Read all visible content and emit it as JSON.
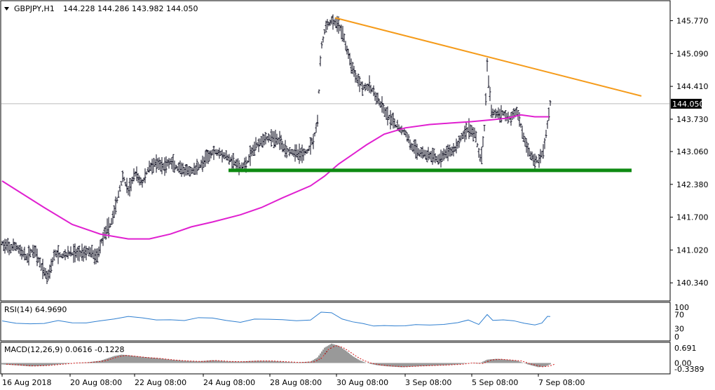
{
  "header": {
    "symbol": "GBPJPY,H1",
    "ohlc": "144.228 144.286 143.982 144.050"
  },
  "chart_data": {
    "type": "candlestick",
    "symbol": "GBPJPY",
    "timeframe": "H1",
    "price_axis": {
      "ticks": [
        "145.770",
        "145.090",
        "144.410",
        "143.730",
        "143.060",
        "142.380",
        "141.700",
        "141.020",
        "140.340"
      ],
      "current_price": "144.050",
      "ylim": [
        139.98,
        146.17
      ]
    },
    "time_axis": {
      "ticks": [
        "16 Aug 2018",
        "20 Aug 08:00",
        "22 Aug 08:00",
        "24 Aug 08:00",
        "28 Aug 08:00",
        "30 Aug 08:00",
        "3 Sep 08:00",
        "5 Sep 08:00",
        "7 Sep 08:00"
      ]
    },
    "price_path": [
      [
        0,
        141.15
      ],
      [
        10,
        141.05
      ],
      [
        20,
        141.1
      ],
      [
        35,
        140.85
      ],
      [
        45,
        141.05
      ],
      [
        55,
        140.7
      ],
      [
        65,
        140.45
      ],
      [
        75,
        140.95
      ],
      [
        85,
        140.9
      ],
      [
        95,
        140.95
      ],
      [
        110,
        140.95
      ],
      [
        125,
        141.0
      ],
      [
        135,
        140.85
      ],
      [
        145,
        141.35
      ],
      [
        155,
        141.55
      ],
      [
        165,
        142.1
      ],
      [
        172,
        142.55
      ],
      [
        180,
        142.25
      ],
      [
        190,
        142.6
      ],
      [
        200,
        142.4
      ],
      [
        210,
        142.75
      ],
      [
        220,
        142.8
      ],
      [
        230,
        142.75
      ],
      [
        240,
        142.85
      ],
      [
        250,
        142.7
      ],
      [
        260,
        142.65
      ],
      [
        270,
        142.65
      ],
      [
        285,
        142.8
      ],
      [
        300,
        143.05
      ],
      [
        310,
        143.05
      ],
      [
        320,
        142.95
      ],
      [
        330,
        142.85
      ],
      [
        340,
        142.7
      ],
      [
        350,
        142.85
      ],
      [
        360,
        143.15
      ],
      [
        370,
        143.3
      ],
      [
        380,
        143.35
      ],
      [
        395,
        143.3
      ],
      [
        405,
        143.1
      ],
      [
        415,
        143.05
      ],
      [
        425,
        143.0
      ],
      [
        435,
        143.05
      ],
      [
        445,
        143.35
      ],
      [
        450,
        143.7
      ],
      [
        455,
        145.2
      ],
      [
        462,
        145.65
      ],
      [
        470,
        145.75
      ],
      [
        478,
        145.7
      ],
      [
        485,
        145.55
      ],
      [
        495,
        145.0
      ],
      [
        505,
        144.6
      ],
      [
        515,
        144.4
      ],
      [
        525,
        144.4
      ],
      [
        535,
        144.15
      ],
      [
        545,
        143.9
      ],
      [
        555,
        143.7
      ],
      [
        565,
        143.55
      ],
      [
        575,
        143.45
      ],
      [
        585,
        143.15
      ],
      [
        595,
        143.05
      ],
      [
        605,
        143.0
      ],
      [
        615,
        142.95
      ],
      [
        625,
        142.9
      ],
      [
        635,
        143.05
      ],
      [
        645,
        143.1
      ],
      [
        655,
        143.35
      ],
      [
        665,
        143.55
      ],
      [
        675,
        143.4
      ],
      [
        683,
        142.85
      ],
      [
        688,
        143.55
      ],
      [
        692,
        144.8
      ],
      [
        698,
        143.9
      ],
      [
        705,
        143.85
      ],
      [
        715,
        143.85
      ],
      [
        725,
        143.75
      ],
      [
        735,
        143.9
      ],
      [
        745,
        143.3
      ],
      [
        755,
        142.95
      ],
      [
        765,
        142.85
      ],
      [
        772,
        143.05
      ],
      [
        778,
        143.6
      ],
      [
        782,
        144.05
      ]
    ],
    "moving_average_path": [
      [
        0,
        142.45
      ],
      [
        60,
        141.9
      ],
      [
        100,
        141.55
      ],
      [
        140,
        141.35
      ],
      [
        180,
        141.25
      ],
      [
        210,
        141.25
      ],
      [
        240,
        141.35
      ],
      [
        270,
        141.5
      ],
      [
        300,
        141.6
      ],
      [
        340,
        141.75
      ],
      [
        370,
        141.9
      ],
      [
        400,
        142.1
      ],
      [
        440,
        142.35
      ],
      [
        460,
        142.55
      ],
      [
        480,
        142.8
      ],
      [
        500,
        143.0
      ],
      [
        520,
        143.2
      ],
      [
        545,
        143.42
      ],
      [
        575,
        143.55
      ],
      [
        610,
        143.62
      ],
      [
        640,
        143.65
      ],
      [
        670,
        143.68
      ],
      [
        700,
        143.72
      ],
      [
        720,
        143.75
      ],
      [
        740,
        143.82
      ],
      [
        760,
        143.78
      ],
      [
        780,
        143.78
      ]
    ],
    "trendline_resistance": {
      "from": [
        475,
        145.83
      ],
      "to": [
        912,
        144.21
      ]
    },
    "support_line": {
      "level": 142.67,
      "from_x": 323,
      "to_x": 898
    },
    "rsi": {
      "label": "RSI(14) 64.9690",
      "scale": [
        "100",
        "70",
        "30",
        "0"
      ],
      "values": [
        [
          0,
          52
        ],
        [
          20,
          48
        ],
        [
          40,
          46
        ],
        [
          60,
          44
        ],
        [
          80,
          50
        ],
        [
          100,
          45
        ],
        [
          120,
          48
        ],
        [
          140,
          55
        ],
        [
          160,
          58
        ],
        [
          180,
          62
        ],
        [
          200,
          58
        ],
        [
          220,
          55
        ],
        [
          240,
          58
        ],
        [
          260,
          55
        ],
        [
          280,
          60
        ],
        [
          300,
          57
        ],
        [
          320,
          52
        ],
        [
          340,
          50
        ],
        [
          360,
          60
        ],
        [
          380,
          57
        ],
        [
          400,
          53
        ],
        [
          420,
          50
        ],
        [
          440,
          55
        ],
        [
          455,
          78
        ],
        [
          470,
          72
        ],
        [
          485,
          60
        ],
        [
          500,
          48
        ],
        [
          515,
          44
        ],
        [
          530,
          40
        ],
        [
          545,
          36
        ],
        [
          560,
          40
        ],
        [
          575,
          38
        ],
        [
          590,
          40
        ],
        [
          610,
          42
        ],
        [
          630,
          45
        ],
        [
          650,
          48
        ],
        [
          665,
          52
        ],
        [
          680,
          45
        ],
        [
          692,
          72
        ],
        [
          700,
          55
        ],
        [
          715,
          52
        ],
        [
          730,
          55
        ],
        [
          745,
          44
        ],
        [
          760,
          40
        ],
        [
          770,
          45
        ],
        [
          778,
          62
        ],
        [
          782,
          65
        ]
      ]
    },
    "macd": {
      "label": "MACD(12,26,9) 0.0616 -0.1228",
      "scale": [
        "0.691",
        "0.00",
        "-0.3389"
      ],
      "histogram": [
        [
          0,
          -0.05
        ],
        [
          20,
          -0.08
        ],
        [
          40,
          -0.12
        ],
        [
          60,
          -0.1
        ],
        [
          80,
          -0.05
        ],
        [
          100,
          0.0
        ],
        [
          120,
          0.02
        ],
        [
          140,
          0.08
        ],
        [
          160,
          0.25
        ],
        [
          170,
          0.3
        ],
        [
          180,
          0.28
        ],
        [
          200,
          0.22
        ],
        [
          220,
          0.18
        ],
        [
          240,
          0.12
        ],
        [
          260,
          0.08
        ],
        [
          280,
          0.06
        ],
        [
          300,
          0.1
        ],
        [
          320,
          0.06
        ],
        [
          340,
          0.05
        ],
        [
          360,
          0.08
        ],
        [
          380,
          0.08
        ],
        [
          400,
          0.05
        ],
        [
          420,
          0.02
        ],
        [
          440,
          0.05
        ],
        [
          450,
          0.2
        ],
        [
          460,
          0.55
        ],
        [
          470,
          0.69
        ],
        [
          480,
          0.62
        ],
        [
          490,
          0.45
        ],
        [
          500,
          0.25
        ],
        [
          510,
          0.1
        ],
        [
          520,
          0.0
        ],
        [
          535,
          -0.08
        ],
        [
          550,
          -0.12
        ],
        [
          570,
          -0.15
        ],
        [
          590,
          -0.12
        ],
        [
          610,
          -0.1
        ],
        [
          630,
          -0.08
        ],
        [
          650,
          -0.05
        ],
        [
          665,
          0.0
        ],
        [
          680,
          -0.02
        ],
        [
          692,
          0.12
        ],
        [
          705,
          0.15
        ],
        [
          720,
          0.12
        ],
        [
          735,
          0.08
        ],
        [
          750,
          -0.05
        ],
        [
          765,
          -0.15
        ],
        [
          775,
          -0.12
        ],
        [
          782,
          -0.05
        ]
      ]
    },
    "colors": {
      "bar": "#0b0b1e",
      "moving_average": "#e020d0",
      "trendline": "#f59b1a",
      "support": "#0e8a12",
      "rsi": "#2f7fd0",
      "macd_signal": "#d01818",
      "grid_line": "#bbbbbb",
      "current_price_box": "#000000"
    }
  }
}
